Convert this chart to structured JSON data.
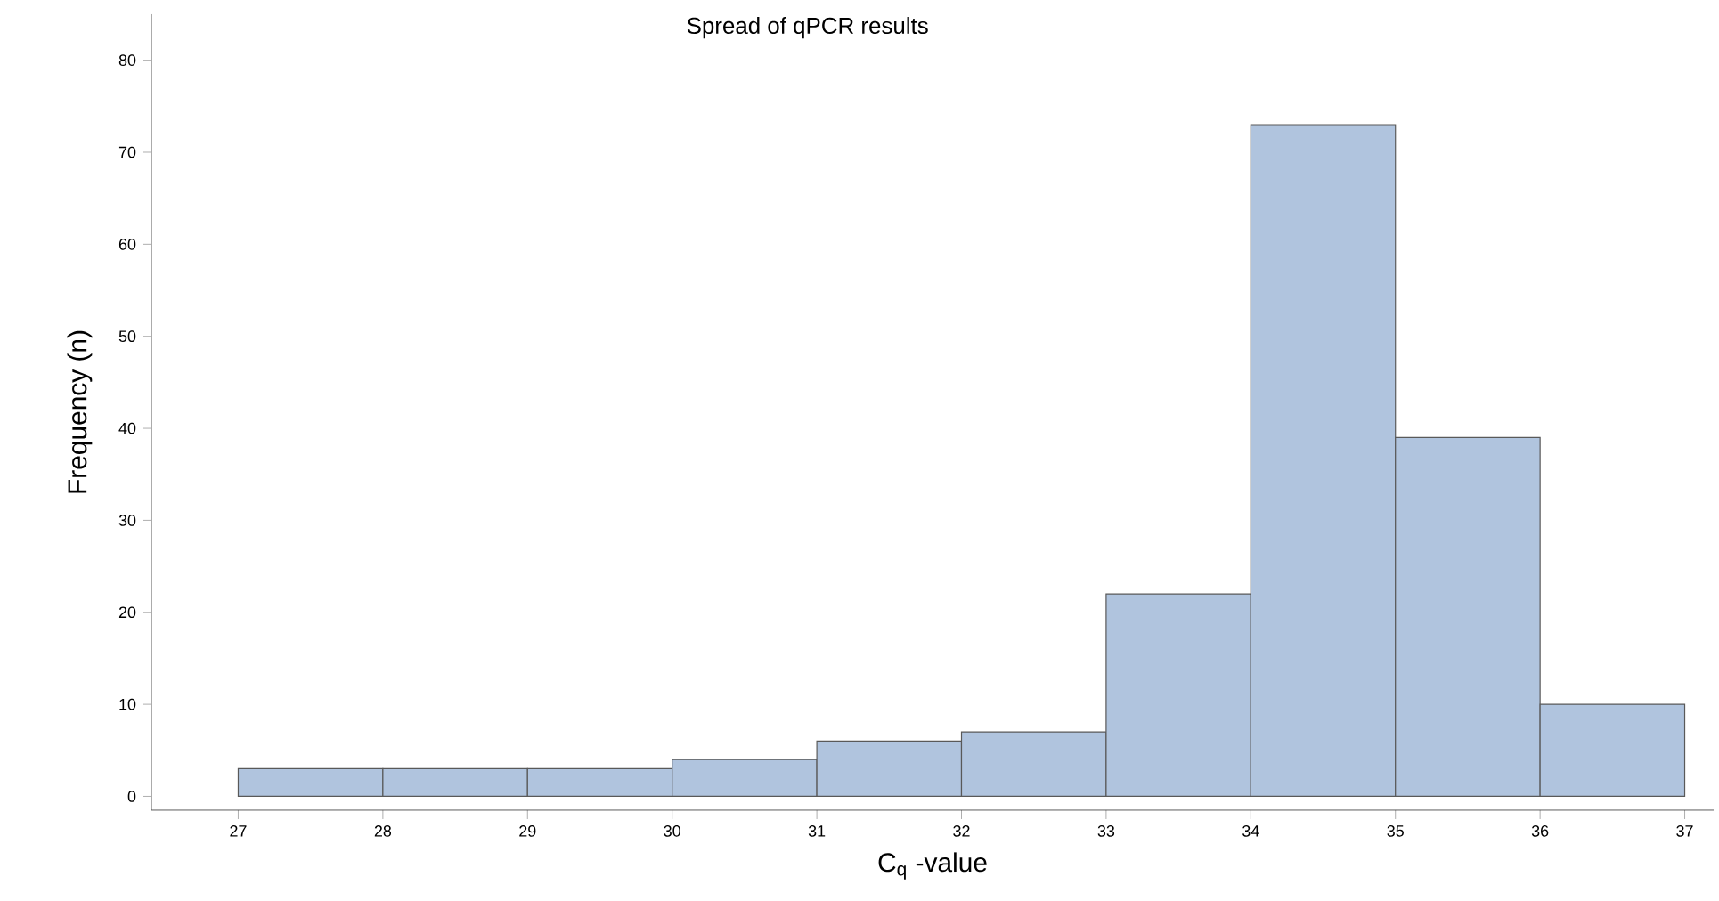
{
  "chart_data": {
    "type": "histogram",
    "title": "Spread of qPCR results",
    "xlabel": "C$_{q}$ -value",
    "ylabel": "Frequency (n)",
    "bins": [
      27,
      28,
      29,
      30,
      31,
      32,
      33,
      34,
      35,
      36,
      37
    ],
    "values": [
      3,
      3,
      3,
      4,
      6,
      7,
      22,
      73,
      39,
      10
    ],
    "color": "#b0c4de",
    "xlim": [
      26.4,
      37.2
    ],
    "ylim": [
      -1.5,
      85
    ],
    "xticks": [
      27,
      28,
      29,
      30,
      31,
      32,
      33,
      34,
      35,
      36,
      37
    ],
    "yticks": [
      0,
      10,
      20,
      30,
      40,
      50,
      60,
      70,
      80
    ],
    "grid": false
  }
}
